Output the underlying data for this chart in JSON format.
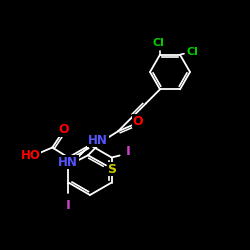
{
  "bg_color": "#000000",
  "bond_color": "#ffffff",
  "atom_colors": {
    "Cl": "#00cc00",
    "O": "#ff0000",
    "N": "#5555ff",
    "S": "#cccc00",
    "I": "#cc44cc",
    "HO": "#ff0000"
  }
}
